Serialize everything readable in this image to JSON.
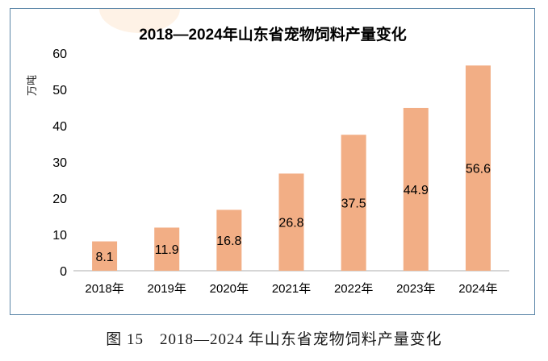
{
  "chart_data": {
    "type": "bar",
    "title": "2018—2024年山东省宠物饲料产量变化",
    "ylabel": "万吨",
    "xlabel": "",
    "ylim": [
      0,
      60
    ],
    "yticks": [
      0,
      10,
      20,
      30,
      40,
      50,
      60
    ],
    "categories": [
      "2018年",
      "2019年",
      "2020年",
      "2021年",
      "2022年",
      "2023年",
      "2024年"
    ],
    "values": [
      8.1,
      11.9,
      16.8,
      26.8,
      37.5,
      44.9,
      56.6
    ],
    "value_labels": [
      "8.1",
      "11.9",
      "16.8",
      "26.8",
      "37.5",
      "44.9",
      "56.6"
    ],
    "bar_color": "#f2ae85",
    "grid": false
  },
  "caption": "图 15　2018—2024 年山东省宠物饲料产量变化"
}
